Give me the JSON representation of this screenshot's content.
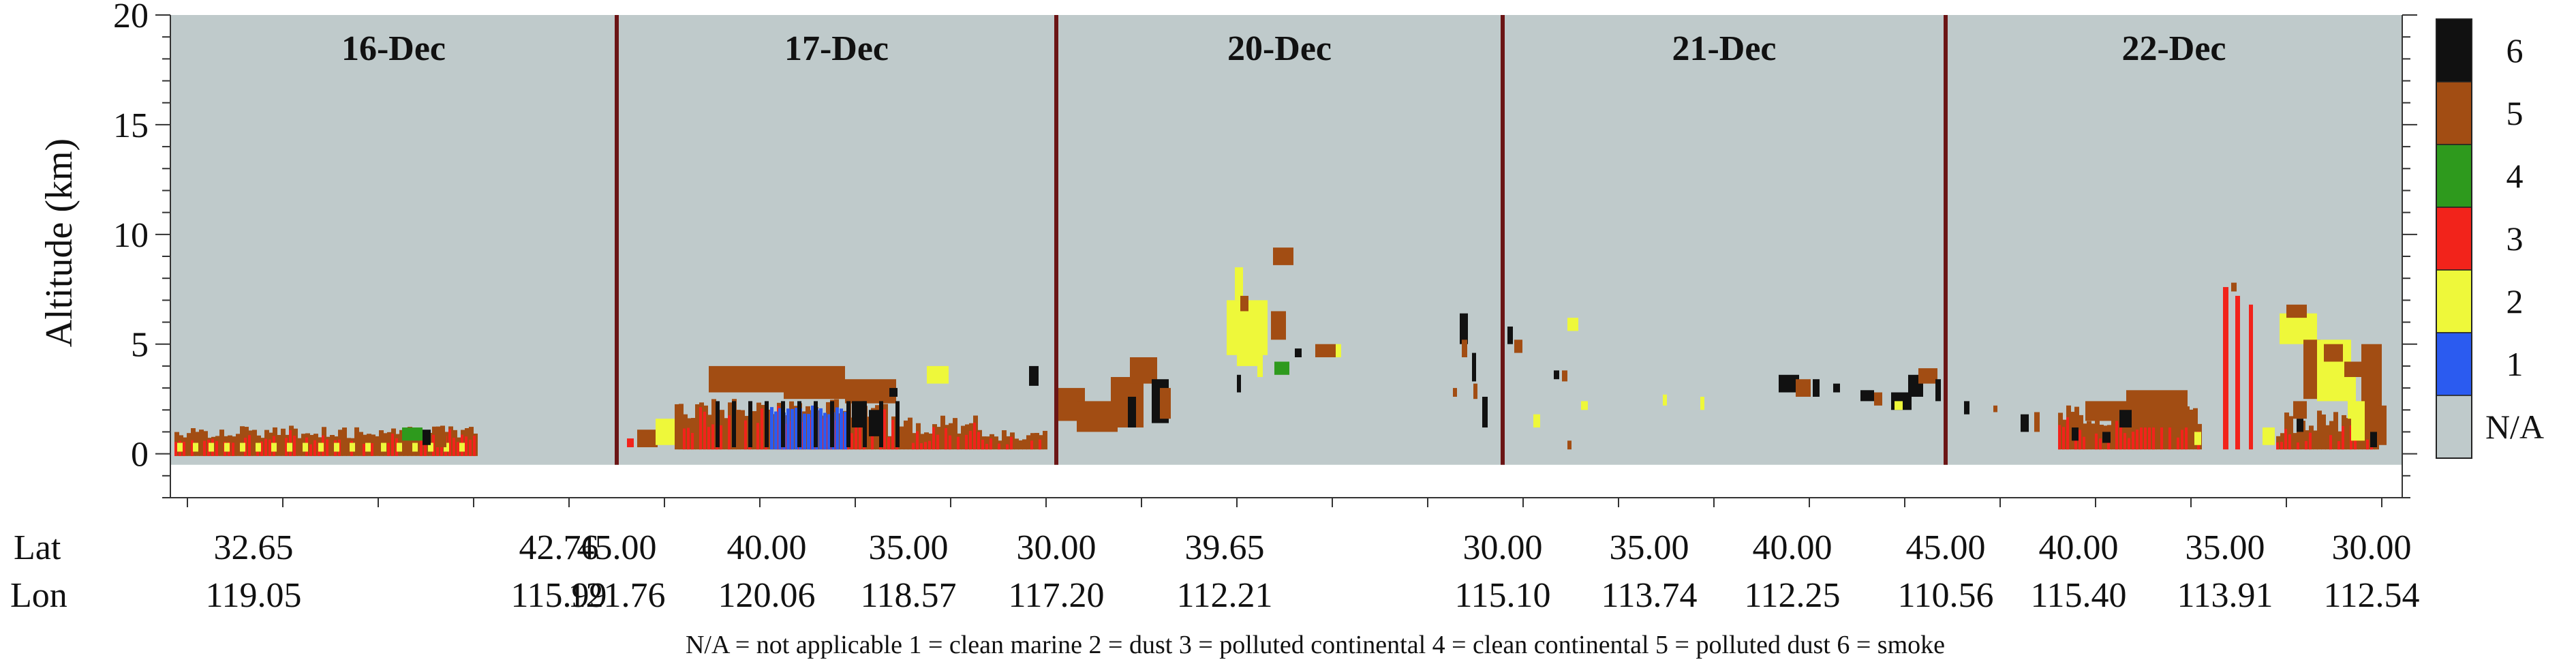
{
  "chart_data": {
    "type": "heatmap",
    "title": "",
    "xlabel": "",
    "ylabel": "Altitude (km)",
    "ylim": [
      0,
      20
    ],
    "y_range_plotted": [
      -2,
      20
    ],
    "y_ticks": [
      "0",
      "5",
      "10",
      "15",
      "20"
    ],
    "grid": false,
    "panels": [
      {
        "label": "16-Dec"
      },
      {
        "label": "17-Dec"
      },
      {
        "label": "20-Dec"
      },
      {
        "label": "21-Dec"
      },
      {
        "label": "22-Dec"
      }
    ],
    "row_labels": {
      "lat": "Lat",
      "lon": "Lon"
    },
    "coordinate_ticks": [
      {
        "lat": "32.65",
        "lon": "119.05"
      },
      {
        "lat": "42.76",
        "lon": "115.99"
      },
      {
        "lat": "45.00",
        "lon": "121.76"
      },
      {
        "lat": "40.00",
        "lon": "120.06"
      },
      {
        "lat": "35.00",
        "lon": "118.57"
      },
      {
        "lat": "30.00",
        "lon": "117.20"
      },
      {
        "lat": "39.65",
        "lon": "112.21"
      },
      {
        "lat": "30.00",
        "lon": "115.10"
      },
      {
        "lat": "35.00",
        "lon": "113.74"
      },
      {
        "lat": "40.00",
        "lon": "112.25"
      },
      {
        "lat": "45.00",
        "lon": "110.56"
      },
      {
        "lat": "40.00",
        "lon": "115.40"
      },
      {
        "lat": "35.00",
        "lon": "113.91"
      },
      {
        "lat": "30.00",
        "lon": "112.54"
      }
    ],
    "legend": {
      "placement": "right",
      "entries": [
        {
          "label": "6",
          "color": "#111111"
        },
        {
          "label": "5",
          "color": "#a24d13"
        },
        {
          "label": "4",
          "color": "#2e9a1d"
        },
        {
          "label": "3",
          "color": "#f2231b"
        },
        {
          "label": "2",
          "color": "#eef83a"
        },
        {
          "label": "1",
          "color": "#2b5bf0"
        },
        {
          "label": "N/A",
          "color": "#bfcacb"
        }
      ]
    },
    "footnote": "N/A = not applicable 1 = clean marine 2 = dust 3 = polluted continental 4 = clean continental 5 = polluted dust   6 = smoke",
    "colors": {
      "na": "#bfcacb",
      "clean_marine": "#2b5bf0",
      "dust": "#eef83a",
      "polluted_continental": "#f2231b",
      "clean_continental": "#2e9a1d",
      "polluted_dust": "#a24d13",
      "smoke": "#111111",
      "separator": "#6b1515"
    }
  }
}
